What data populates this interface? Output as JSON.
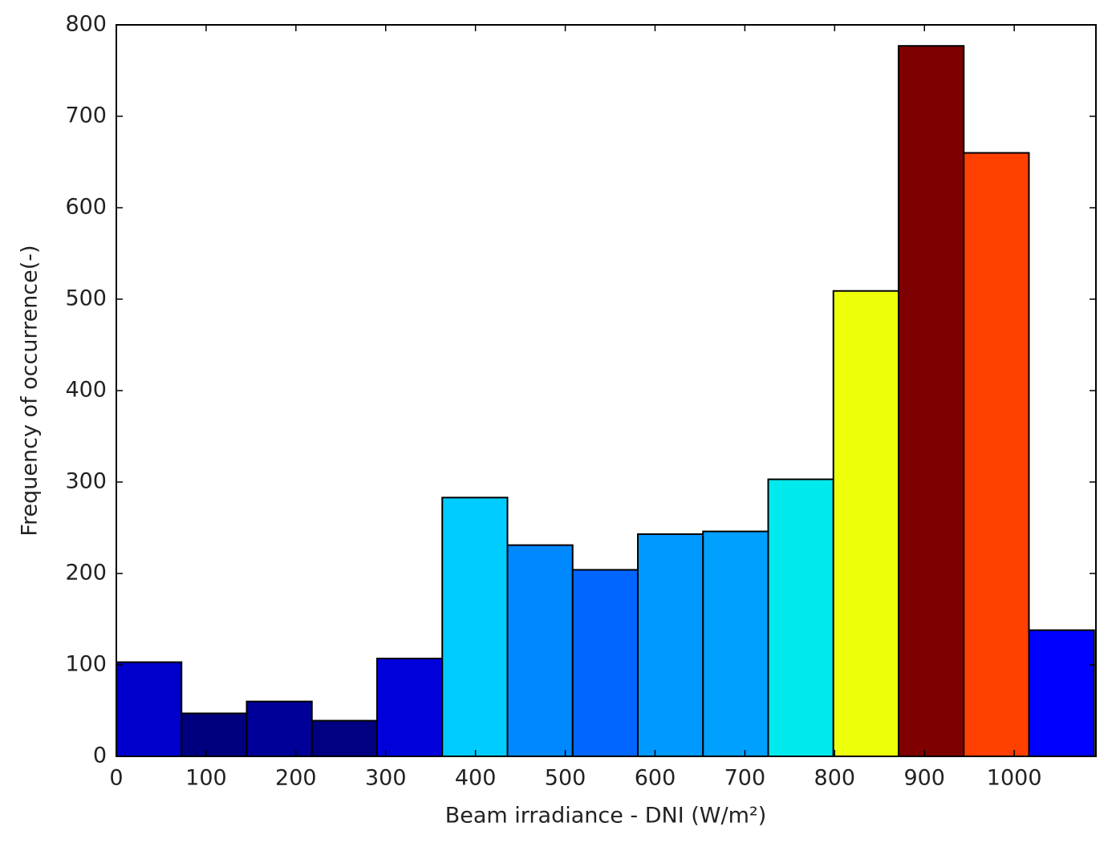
{
  "chart_data": {
    "type": "histogram",
    "xlabel": "Beam irradiance - DNI (W/m²)",
    "ylabel": "Frequency of occurrence(-)",
    "bins": [
      0,
      72.6,
      145.2,
      217.8,
      290.4,
      363,
      435.6,
      508.2,
      580.8,
      653.4,
      726,
      798.6,
      871.2,
      943.8,
      1016.4,
      1089
    ],
    "values": [
      103,
      47,
      60,
      39,
      107,
      283,
      231,
      204,
      243,
      246,
      303,
      509,
      777,
      660,
      138
    ],
    "colors": [
      "#0000cd",
      "#00007f",
      "#000099",
      "#000080",
      "#0000db",
      "#00ccff",
      "#0088ff",
      "#0066ff",
      "#0099ff",
      "#00a0ff",
      "#00eaee",
      "#eeff0a",
      "#7f0000",
      "#ff4000",
      "#0000ff"
    ],
    "xlim": [
      0,
      1091
    ],
    "ylim": [
      0,
      800
    ],
    "xticks": [
      0,
      100,
      200,
      300,
      400,
      500,
      600,
      700,
      800,
      900,
      1000
    ],
    "yticks": [
      0,
      100,
      200,
      300,
      400,
      500,
      600,
      700,
      800
    ],
    "grid": false
  }
}
